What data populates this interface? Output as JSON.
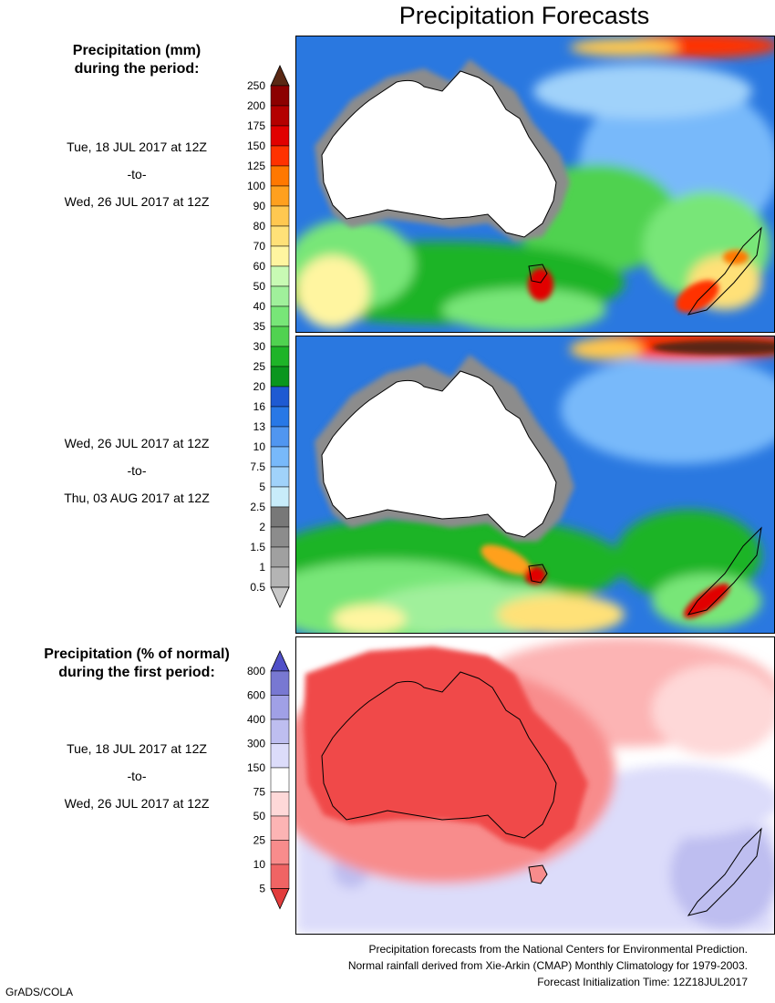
{
  "title": "Precipitation Forecasts",
  "legend_amount": {
    "heading": [
      "Precipitation (mm)",
      "during the period:"
    ],
    "levels": [
      "0.5",
      "1",
      "1.5",
      "2",
      "2.5",
      "5",
      "7.5",
      "10",
      "13",
      "16",
      "20",
      "25",
      "30",
      "35",
      "40",
      "50",
      "60",
      "70",
      "80",
      "90",
      "100",
      "125",
      "150",
      "175",
      "200",
      "250"
    ],
    "colors": [
      "#c8c8c8",
      "#b4b4b4",
      "#a0a0a0",
      "#8c8c8c",
      "#787878",
      "#c8ecfa",
      "#a0d2fa",
      "#78b9fa",
      "#5096f0",
      "#2878e6",
      "#1e5ad2",
      "#0a961e",
      "#1eb428",
      "#50d250",
      "#78e678",
      "#a0f09b",
      "#c8fab4",
      "#fff5a0",
      "#ffe178",
      "#ffc850",
      "#ffa01e",
      "#ff7800",
      "#ff3200",
      "#e10000",
      "#b40000",
      "#8c0000",
      "#5a2814"
    ]
  },
  "legend_percent": {
    "heading": [
      "Precipitation (% of normal)",
      "during the first period:"
    ],
    "levels": [
      "5",
      "10",
      "25",
      "50",
      "75",
      "150",
      "300",
      "400",
      "600",
      "800"
    ],
    "colors": [
      "#e23c3c",
      "#f06464",
      "#f88c8c",
      "#fcb4b4",
      "#fed8d8",
      "#ffffff",
      "#dcdcfa",
      "#bebef0",
      "#a0a0e6",
      "#7878d2",
      "#5050c8"
    ]
  },
  "periods": [
    {
      "start": "Tue, 18 JUL 2017 at 12Z",
      "sep": "-to-",
      "end": "Wed, 26 JUL 2017 at 12Z"
    },
    {
      "start": "Wed, 26 JUL 2017 at 12Z",
      "sep": "-to-",
      "end": "Thu, 03 AUG 2017 at 12Z"
    },
    {
      "start": "Tue, 18 JUL 2017 at 12Z",
      "sep": "-to-",
      "end": "Wed, 26 JUL 2017 at 12Z"
    }
  ],
  "footer": [
    "Precipitation forecasts from the National Centers for Environmental Prediction.",
    "Normal rainfall derived from Xie-Arkin (CMAP) Monthly Climatology for 1979-2003.",
    "Forecast Initialization Time: 12Z18JUL2017"
  ],
  "credit": "GrADS/COLA"
}
